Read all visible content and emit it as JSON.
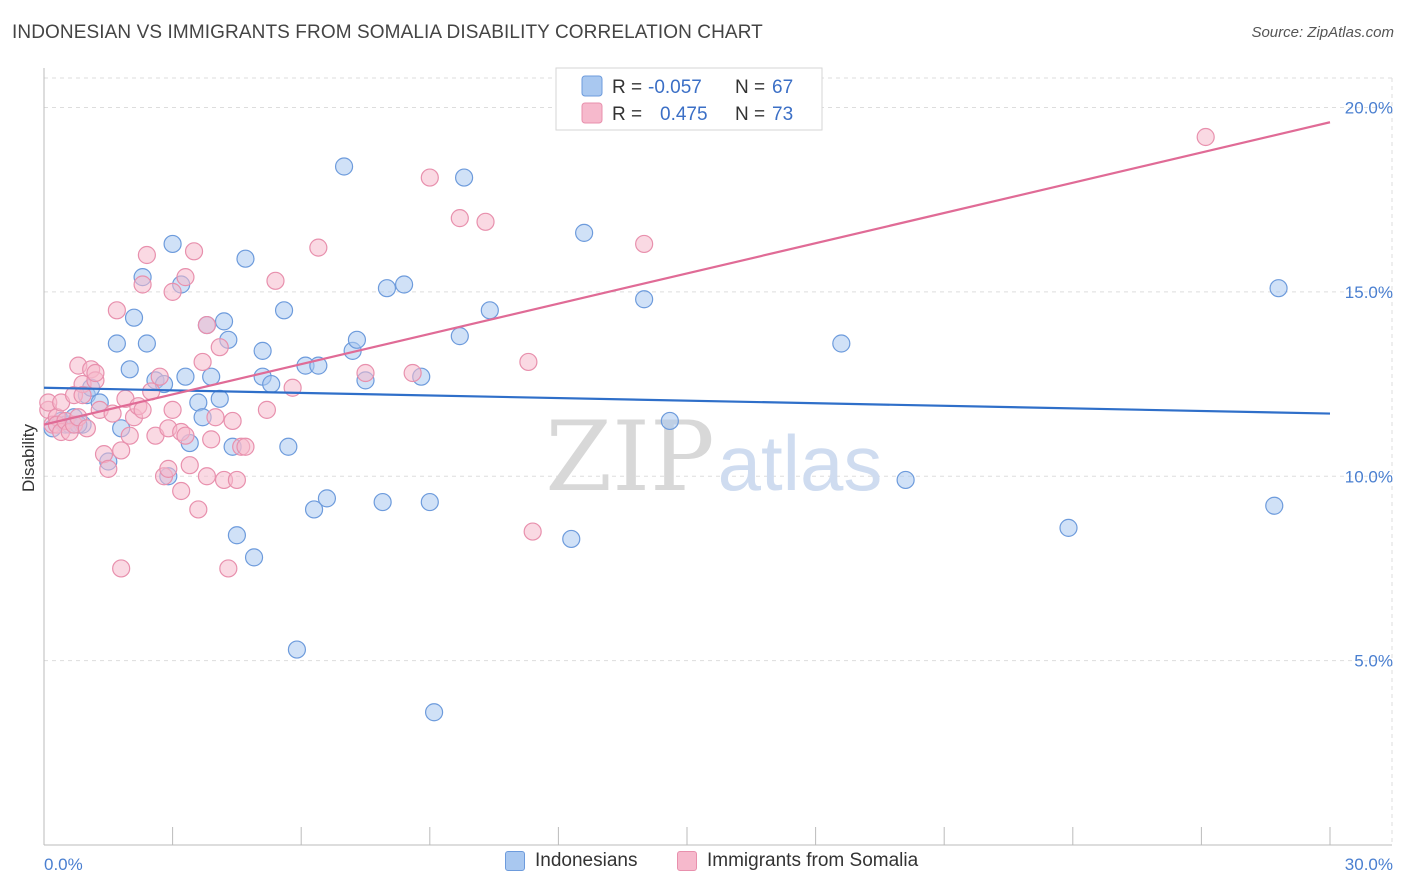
{
  "title": "INDONESIAN VS IMMIGRANTS FROM SOMALIA DISABILITY CORRELATION CHART",
  "source": "Source: ZipAtlas.com",
  "watermark": {
    "zip": "ZIP",
    "atlas": "atlas"
  },
  "colors": {
    "blue_fill": "#a9c8f0",
    "blue_stroke": "#6d9bdc",
    "blue_line": "#2f6fc9",
    "pink_fill": "#f6b9cc",
    "pink_stroke": "#e890ad",
    "pink_line": "#e06b96",
    "grid": "#dddddd",
    "axis_text": "#4a7fd0"
  },
  "legend": {
    "rows": [
      {
        "r_label": "R =",
        "r_value": "-0.057",
        "n_label": "N =",
        "n_value": "67",
        "series": "blue"
      },
      {
        "r_label": "R =",
        "r_value": "0.475",
        "n_label": "N =",
        "n_value": "73",
        "series": "pink"
      }
    ]
  },
  "bottom_legend": [
    {
      "label": "Indonesians",
      "series": "blue"
    },
    {
      "label": "Immigrants from Somalia",
      "series": "pink"
    }
  ],
  "chart_data": {
    "type": "scatter",
    "title": "INDONESIAN VS IMMIGRANTS FROM SOMALIA DISABILITY CORRELATION CHART",
    "xlabel": "",
    "ylabel": "Disability",
    "xlim": [
      0,
      30
    ],
    "ylim": [
      0,
      20.8
    ],
    "x_tick_labels": [
      "0.0%",
      "30.0%"
    ],
    "y_ticks": [
      5,
      10,
      15,
      20
    ],
    "y_tick_labels": [
      "5.0%",
      "10.0%",
      "15.0%",
      "20.0%"
    ],
    "grid": true,
    "series": [
      {
        "name": "Indonesians",
        "color": "blue",
        "R": -0.057,
        "N": 67,
        "trend": {
          "x": [
            0,
            30
          ],
          "y": [
            12.4,
            11.7
          ]
        },
        "points": [
          [
            0.2,
            11.3
          ],
          [
            0.4,
            11.5
          ],
          [
            0.5,
            11.4
          ],
          [
            0.6,
            11.4
          ],
          [
            0.7,
            11.6
          ],
          [
            0.9,
            11.4
          ],
          [
            1.0,
            12.2
          ],
          [
            1.1,
            12.4
          ],
          [
            1.3,
            12.0
          ],
          [
            1.5,
            10.4
          ],
          [
            1.7,
            13.6
          ],
          [
            1.8,
            11.3
          ],
          [
            2.0,
            12.9
          ],
          [
            2.1,
            14.3
          ],
          [
            2.3,
            15.4
          ],
          [
            2.4,
            13.6
          ],
          [
            2.6,
            12.6
          ],
          [
            2.8,
            12.5
          ],
          [
            2.9,
            10.0
          ],
          [
            3.0,
            16.3
          ],
          [
            3.2,
            15.2
          ],
          [
            3.3,
            12.7
          ],
          [
            3.4,
            10.9
          ],
          [
            3.6,
            12.0
          ],
          [
            3.7,
            11.6
          ],
          [
            3.8,
            14.1
          ],
          [
            3.9,
            12.7
          ],
          [
            4.1,
            12.1
          ],
          [
            4.2,
            14.2
          ],
          [
            4.3,
            13.7
          ],
          [
            4.4,
            10.8
          ],
          [
            4.5,
            8.4
          ],
          [
            4.7,
            15.9
          ],
          [
            4.9,
            7.8
          ],
          [
            5.1,
            12.7
          ],
          [
            5.1,
            13.4
          ],
          [
            5.3,
            12.5
          ],
          [
            5.6,
            14.5
          ],
          [
            5.7,
            10.8
          ],
          [
            5.9,
            5.3
          ],
          [
            6.1,
            13.0
          ],
          [
            6.3,
            9.1
          ],
          [
            6.4,
            13.0
          ],
          [
            6.6,
            9.4
          ],
          [
            7.0,
            18.4
          ],
          [
            7.2,
            13.4
          ],
          [
            7.3,
            13.7
          ],
          [
            7.5,
            12.6
          ],
          [
            7.9,
            9.3
          ],
          [
            8.0,
            15.1
          ],
          [
            8.4,
            15.2
          ],
          [
            8.8,
            12.7
          ],
          [
            9.0,
            9.3
          ],
          [
            9.1,
            3.6
          ],
          [
            9.7,
            13.8
          ],
          [
            9.8,
            18.1
          ],
          [
            10.4,
            14.5
          ],
          [
            12.3,
            8.3
          ],
          [
            12.6,
            16.6
          ],
          [
            14.0,
            14.8
          ],
          [
            14.6,
            11.5
          ],
          [
            18.6,
            13.6
          ],
          [
            20.1,
            9.9
          ],
          [
            23.9,
            8.6
          ],
          [
            28.7,
            9.2
          ],
          [
            28.8,
            15.1
          ],
          [
            0.8,
            11.4
          ]
        ]
      },
      {
        "name": "Immigrants from Somalia",
        "color": "pink",
        "R": 0.475,
        "N": 73,
        "trend": {
          "x": [
            0,
            30
          ],
          "y": [
            11.4,
            19.6
          ]
        },
        "points": [
          [
            0.1,
            11.8
          ],
          [
            0.1,
            12.0
          ],
          [
            0.2,
            11.4
          ],
          [
            0.3,
            11.6
          ],
          [
            0.3,
            11.4
          ],
          [
            0.4,
            11.2
          ],
          [
            0.4,
            12.0
          ],
          [
            0.5,
            11.5
          ],
          [
            0.6,
            11.2
          ],
          [
            0.7,
            12.2
          ],
          [
            0.7,
            11.4
          ],
          [
            0.8,
            11.6
          ],
          [
            0.8,
            13.0
          ],
          [
            0.9,
            12.5
          ],
          [
            0.9,
            12.2
          ],
          [
            1.0,
            11.3
          ],
          [
            1.1,
            12.9
          ],
          [
            1.2,
            12.6
          ],
          [
            1.2,
            12.8
          ],
          [
            1.3,
            11.8
          ],
          [
            1.4,
            10.6
          ],
          [
            1.5,
            10.2
          ],
          [
            1.6,
            11.7
          ],
          [
            1.7,
            14.5
          ],
          [
            1.8,
            7.5
          ],
          [
            1.8,
            10.7
          ],
          [
            1.9,
            12.1
          ],
          [
            2.0,
            11.1
          ],
          [
            2.1,
            11.6
          ],
          [
            2.2,
            11.9
          ],
          [
            2.3,
            15.2
          ],
          [
            2.3,
            11.8
          ],
          [
            2.4,
            16.0
          ],
          [
            2.5,
            12.3
          ],
          [
            2.6,
            11.1
          ],
          [
            2.7,
            12.7
          ],
          [
            2.8,
            10.0
          ],
          [
            2.9,
            11.3
          ],
          [
            3.0,
            15.0
          ],
          [
            3.0,
            11.8
          ],
          [
            3.2,
            11.2
          ],
          [
            3.3,
            11.1
          ],
          [
            3.3,
            15.4
          ],
          [
            3.4,
            10.3
          ],
          [
            3.5,
            16.1
          ],
          [
            3.6,
            9.1
          ],
          [
            3.7,
            13.1
          ],
          [
            3.8,
            10.0
          ],
          [
            3.8,
            14.1
          ],
          [
            3.9,
            11.0
          ],
          [
            4.0,
            11.6
          ],
          [
            4.1,
            13.5
          ],
          [
            4.2,
            9.9
          ],
          [
            4.3,
            7.5
          ],
          [
            4.4,
            11.5
          ],
          [
            4.5,
            9.9
          ],
          [
            4.6,
            10.8
          ],
          [
            5.2,
            11.8
          ],
          [
            5.4,
            15.3
          ],
          [
            5.8,
            12.4
          ],
          [
            6.4,
            16.2
          ],
          [
            7.5,
            12.8
          ],
          [
            8.6,
            12.8
          ],
          [
            9.0,
            18.1
          ],
          [
            9.7,
            17.0
          ],
          [
            10.3,
            16.9
          ],
          [
            11.3,
            13.1
          ],
          [
            11.4,
            8.5
          ],
          [
            14.0,
            16.3
          ],
          [
            27.1,
            19.2
          ],
          [
            3.2,
            9.6
          ],
          [
            2.9,
            10.2
          ],
          [
            4.7,
            10.8
          ]
        ]
      }
    ]
  }
}
